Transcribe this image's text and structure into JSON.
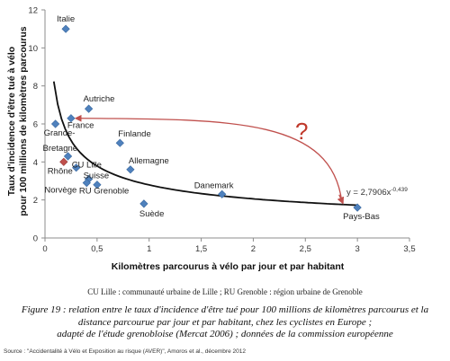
{
  "chart_data": {
    "type": "scatter",
    "xlabel": "Kilomètres parcourus à vélo par jour et par habitant",
    "ylabel_lines": [
      "Taux d'incidence d'être tué  à vélo",
      "pour 100  millions de kilomètres parcourus"
    ],
    "xlim": [
      0,
      3.5
    ],
    "ylim": [
      0,
      12
    ],
    "x_ticks": [
      "0",
      "0,5",
      "1",
      "1,5",
      "2",
      "2,5",
      "3",
      "3,5"
    ],
    "y_ticks": [
      "0",
      "2",
      "4",
      "6",
      "8",
      "10",
      "12"
    ],
    "series": [
      {
        "marker_color": "#4f81bd",
        "points": [
          {
            "label": "Italie",
            "x": 0.2,
            "y": 11.0
          },
          {
            "label": "Autriche",
            "x": 0.42,
            "y": 6.8
          },
          {
            "label": "France",
            "x": 0.25,
            "y": 6.3
          },
          {
            "label": "Grande-",
            "x": 0.1,
            "y": 6.0
          },
          {
            "label": "Finlande",
            "x": 0.72,
            "y": 5.0
          },
          {
            "label": "Bretagne",
            "x": 0.22,
            "y": 4.3
          },
          {
            "label": "CU Lille",
            "x": 0.3,
            "y": 3.7
          },
          {
            "label": "Allemagne",
            "x": 0.82,
            "y": 3.6
          },
          {
            "label": "Suisse",
            "x": 0.42,
            "y": 3.1
          },
          {
            "label": "Norvège",
            "x": 0.4,
            "y": 2.9
          },
          {
            "label": "RU Grenoble",
            "x": 0.5,
            "y": 2.8
          },
          {
            "label": "Danemark",
            "x": 1.7,
            "y": 2.3
          },
          {
            "label": "Suède",
            "x": 0.95,
            "y": 1.8
          },
          {
            "label": "Pays-Bas",
            "x": 3.0,
            "y": 1.6
          }
        ]
      },
      {
        "marker_color": "#c0504d",
        "points": [
          {
            "label": "Rhône",
            "x": 0.18,
            "y": 4.0
          }
        ]
      }
    ],
    "trendline": {
      "equation": "y = 2,7906x",
      "exponent": "-0,439",
      "a": 2.7906,
      "b": -0.439,
      "color": "#111111"
    },
    "annotation": {
      "text": "?",
      "color": "#c0392b"
    },
    "grid": false
  },
  "legend_note": "CU Lille : communauté urbaine de Lille ; RU Grenoble : région urbaine de Grenoble",
  "caption_lines": [
    "Figure 19 : relation entre le taux d'incidence d'être tué pour 100 millions de kilomètres parcourus et la",
    "distance parcourue par jour et par habitant, chez les cyclistes en Europe ;",
    "adapté de l'étude grenobloise (Mercat 2006) ; données de la commission européenne"
  ],
  "source": "Source : \"Accidentalité à Vélo et Exposition au risque (AVER)\", Amoros et al., décembre 2012"
}
